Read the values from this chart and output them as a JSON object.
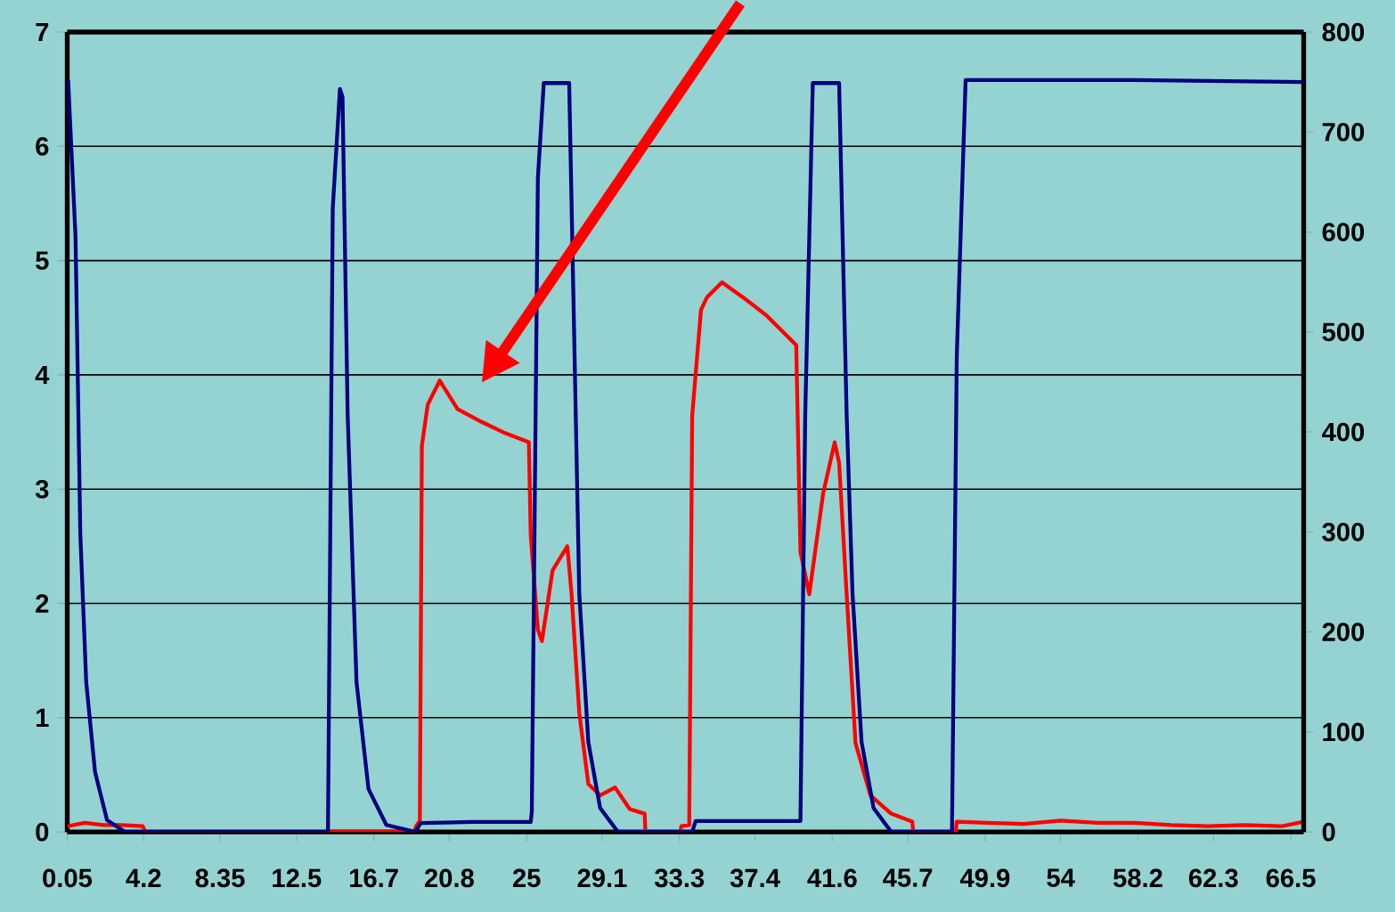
{
  "chart_data": {
    "type": "line",
    "xlim": [
      0.05,
      67.2
    ],
    "xticks": [
      0.05,
      4.2,
      8.35,
      12.5,
      16.7,
      20.8,
      25,
      29.1,
      33.3,
      37.4,
      41.6,
      45.7,
      49.9,
      54,
      58.2,
      62.3,
      66.5
    ],
    "ylim": [
      0,
      7
    ],
    "yticks": [
      0,
      1,
      2,
      3,
      4,
      5,
      6,
      7
    ],
    "y2lim": [
      0,
      800
    ],
    "y2ticks": [
      0,
      100,
      200,
      300,
      400,
      500,
      600,
      700,
      800
    ],
    "grid": "y",
    "marker": "none",
    "line_style": "solid",
    "series": [
      {
        "color": "#ff0000",
        "x": [
          0.05,
          1.0,
          2.0,
          3.0,
          4.15,
          4.3,
          18.9,
          19.0,
          19.2,
          19.31,
          19.63,
          20.28,
          21.25,
          22.54,
          23.83,
          25.12,
          25.22,
          25.61,
          25.83,
          26.41,
          27.21,
          27.44,
          27.86,
          28.35,
          28.99,
          29.8,
          30.6,
          31.41,
          31.45,
          33.35,
          33.4,
          33.83,
          33.99,
          34.47,
          34.8,
          35.61,
          36.74,
          38.03,
          39.64,
          39.87,
          40.35,
          41.1,
          41.73,
          41.97,
          42.38,
          42.86,
          43.67,
          44.8,
          45.94,
          46.0,
          48.3,
          48.36,
          50,
          52,
          54,
          56,
          58,
          60,
          62,
          64,
          66,
          67.2
        ],
        "values": [
          0.05,
          0.08,
          0.06,
          0.06,
          0.05,
          0,
          0,
          0.05,
          0.1,
          3.38,
          3.74,
          3.95,
          3.7,
          3.59,
          3.49,
          3.41,
          2.6,
          1.77,
          1.67,
          2.29,
          2.5,
          2.08,
          1.04,
          0.42,
          0.32,
          0.39,
          0.2,
          0.16,
          0,
          0,
          0.05,
          0.06,
          3.64,
          4.57,
          4.68,
          4.81,
          4.68,
          4.52,
          4.26,
          2.45,
          2.08,
          2.96,
          3.41,
          3.23,
          2.08,
          0.78,
          0.32,
          0.16,
          0.09,
          0,
          0,
          0.09,
          0.08,
          0.07,
          0.1,
          0.08,
          0.08,
          0.06,
          0.05,
          0.06,
          0.05,
          0.09
        ]
      },
      {
        "color": "#000080",
        "axis": "y2",
        "x": [
          0.1,
          0.5,
          0.76,
          1.08,
          1.56,
          2.21,
          3.18,
          14.21,
          14.47,
          14.86,
          15.0,
          15.28,
          15.76,
          16.41,
          17.38,
          18.96,
          19.25,
          22,
          25.22,
          25.28,
          25.61,
          25.93,
          27.31,
          27.54,
          27.86,
          28.35,
          28.99,
          29.96,
          33.99,
          34.18,
          39.87,
          40.13,
          40.54,
          41.97,
          42.16,
          42.38,
          42.7,
          43.19,
          43.84,
          44.8,
          48.1,
          48.36,
          48.84,
          58,
          67.2
        ],
        "values": [
          752,
          595,
          298,
          150,
          60,
          12,
          0,
          0,
          624,
          743,
          735,
          417,
          150,
          43,
          7,
          0,
          9,
          10,
          10,
          20,
          654,
          749,
          749,
          535,
          238,
          90,
          24,
          0,
          0,
          11,
          11,
          417,
          749,
          749,
          595,
          417,
          238,
          90,
          24,
          0,
          0,
          476,
          752,
          752,
          750
        ]
      }
    ]
  }
}
